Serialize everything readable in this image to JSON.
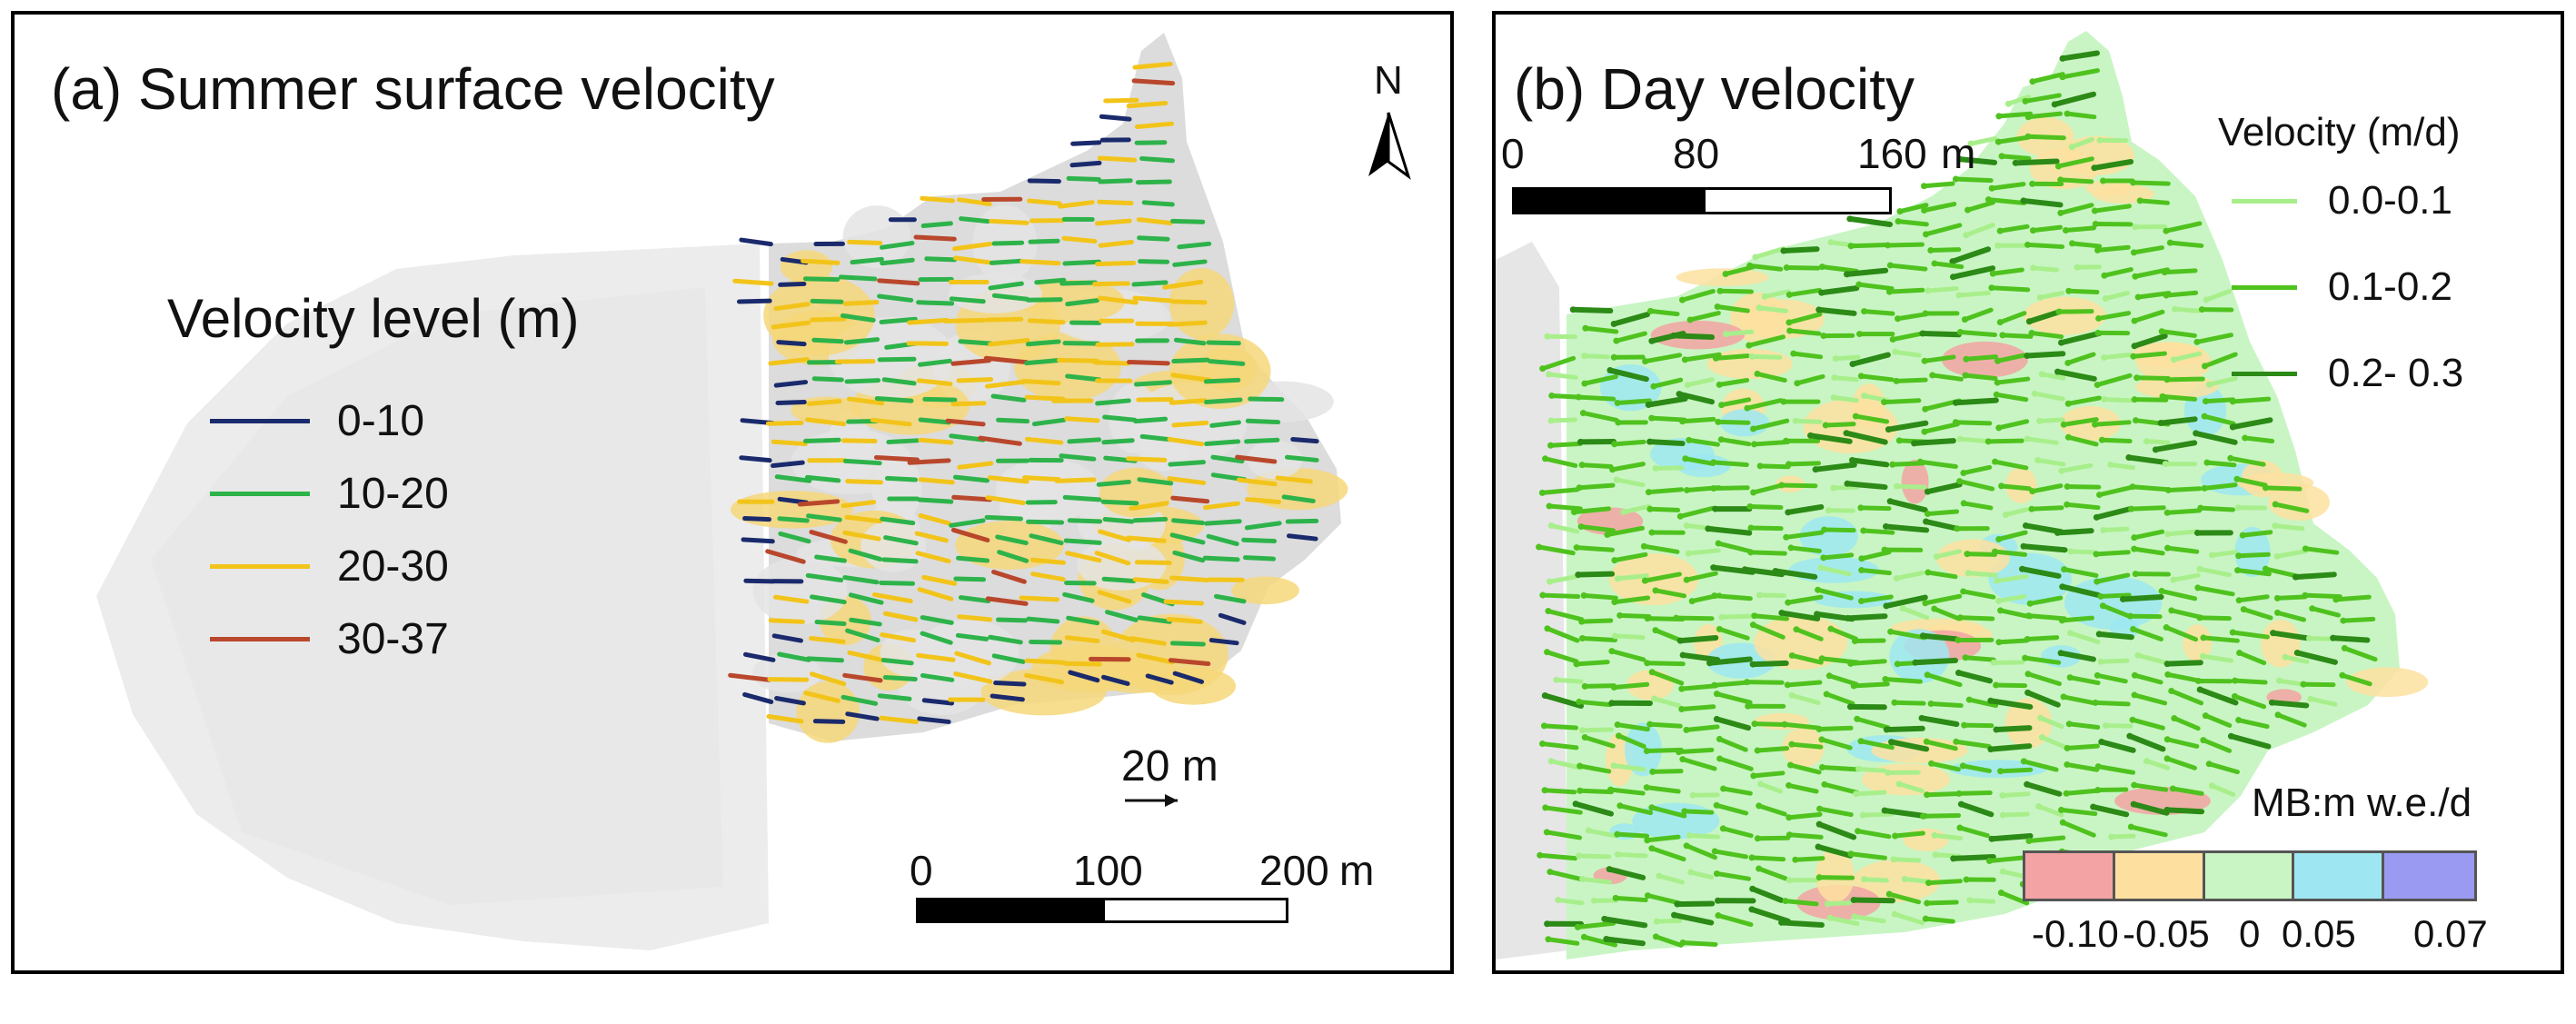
{
  "panel_a": {
    "title": "(a) Summer surface velocity",
    "legend": {
      "title": "Velocity level (m)",
      "items": [
        {
          "label": "0-10",
          "color": "#1a2a6c"
        },
        {
          "label": "10-20",
          "color": "#2db34a"
        },
        {
          "label": "20-30",
          "color": "#f2c41a"
        },
        {
          "label": "30-37",
          "color": "#b9472c"
        }
      ]
    },
    "north_label": "N",
    "reference_arrow_label": "20 m",
    "scale_bar": {
      "ticks": [
        "0",
        "100",
        "200"
      ],
      "unit": "m"
    },
    "colors": {
      "patch_yellow": "#f6d77a",
      "patch_grey": "#e4e4e4",
      "hillshade": "#ededed"
    }
  },
  "panel_b": {
    "title": "(b) Day velocity",
    "scale_bar": {
      "ticks": [
        "0",
        "80",
        "160"
      ],
      "unit": "m"
    },
    "legend": {
      "title": "Velocity (m/d)",
      "items": [
        {
          "label": "0.0-0.1",
          "color": "#a8ef8c"
        },
        {
          "label": "0.1-0.2",
          "color": "#4fc21e"
        },
        {
          "label": "0.2- 0.3",
          "color": "#2c8a16"
        }
      ]
    },
    "mb_legend": {
      "title": "MB:m w.e./d",
      "classes": [
        "#f3a3a3",
        "#fde0a0",
        "#c9f5c4",
        "#9ee7f2",
        "#9b9af2"
      ],
      "labels": [
        "-0.10",
        "-0.05",
        "0",
        "0.05",
        "0.07"
      ]
    }
  }
}
